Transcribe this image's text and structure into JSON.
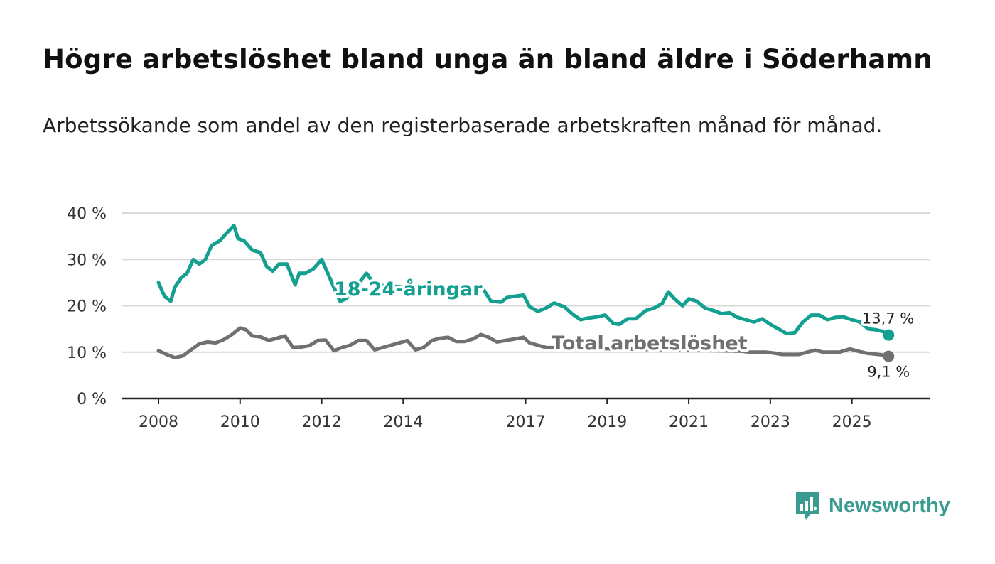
{
  "header": {
    "title": "Högre arbetslöshet bland unga än bland äldre i Söderhamn",
    "subtitle": "Arbetssökande som andel av den registerbaserade arbetskraften månad för månad."
  },
  "brand": {
    "name": "Newsworthy",
    "logo_icon": "newsworthy-logo-icon",
    "color": "#3a9c91"
  },
  "colors": {
    "youth": "#14a090",
    "total": "#707070",
    "grid": "#d9d9d9",
    "axis": "#222222"
  },
  "chart_data": {
    "type": "line",
    "title": "Högre arbetslöshet bland unga än bland äldre i Söderhamn",
    "subtitle": "Arbetssökande som andel av den registerbaserade arbetskraften månad för månad.",
    "ylim": [
      0,
      40
    ],
    "yticks": [
      0,
      10,
      20,
      30,
      40
    ],
    "ytick_labels": [
      "0 %",
      "10 %",
      "20 %",
      "30 %",
      "40 %"
    ],
    "xlim": [
      2008.0,
      2026.0
    ],
    "xticks": [
      2008,
      2010,
      2012,
      2014,
      2017,
      2019,
      2021,
      2023,
      2025
    ],
    "xtick_labels": [
      "2008",
      "2010",
      "2012",
      "2014",
      "2017",
      "2019",
      "2021",
      "2023",
      "2025"
    ],
    "grid": true,
    "series": [
      {
        "name": "18-24-åringar",
        "label": "18-24-åringar",
        "color": "#14a090",
        "end_label": "13,7 %",
        "points": [
          [
            2008.0,
            25.0
          ],
          [
            2008.15,
            22.0
          ],
          [
            2008.3,
            21.0
          ],
          [
            2008.4,
            24.0
          ],
          [
            2008.55,
            26.0
          ],
          [
            2008.7,
            27.0
          ],
          [
            2008.85,
            30.0
          ],
          [
            2009.0,
            29.0
          ],
          [
            2009.15,
            30.0
          ],
          [
            2009.3,
            33.0
          ],
          [
            2009.5,
            34.0
          ],
          [
            2009.65,
            35.5
          ],
          [
            2009.85,
            37.3
          ],
          [
            2009.95,
            34.5
          ],
          [
            2010.1,
            34.0
          ],
          [
            2010.3,
            32.0
          ],
          [
            2010.5,
            31.5
          ],
          [
            2010.65,
            28.5
          ],
          [
            2010.8,
            27.5
          ],
          [
            2010.95,
            29.0
          ],
          [
            2011.15,
            29.0
          ],
          [
            2011.35,
            24.5
          ],
          [
            2011.45,
            27.0
          ],
          [
            2011.6,
            27.0
          ],
          [
            2011.8,
            28.0
          ],
          [
            2012.0,
            30.0
          ],
          [
            2012.15,
            27.0
          ],
          [
            2012.3,
            24.0
          ],
          [
            2012.45,
            21.0
          ],
          [
            2012.6,
            21.5
          ],
          [
            2013.1,
            27.0
          ],
          [
            2013.3,
            24.5
          ],
          [
            2015.5,
            23.0
          ],
          [
            2015.7,
            24.0
          ],
          [
            2015.95,
            23.8
          ],
          [
            2016.15,
            21.0
          ],
          [
            2016.4,
            20.8
          ],
          [
            2016.55,
            21.8
          ],
          [
            2016.7,
            22.0
          ],
          [
            2016.95,
            22.3
          ],
          [
            2017.1,
            19.8
          ],
          [
            2017.3,
            18.8
          ],
          [
            2017.5,
            19.5
          ],
          [
            2017.7,
            20.6
          ],
          [
            2017.95,
            19.8
          ],
          [
            2018.15,
            18.2
          ],
          [
            2018.35,
            17.0
          ],
          [
            2018.5,
            17.3
          ],
          [
            2018.75,
            17.6
          ],
          [
            2018.95,
            18.0
          ],
          [
            2019.15,
            16.2
          ],
          [
            2019.3,
            16.0
          ],
          [
            2019.5,
            17.2
          ],
          [
            2019.7,
            17.2
          ],
          [
            2019.95,
            19.0
          ],
          [
            2020.15,
            19.5
          ],
          [
            2020.35,
            20.5
          ],
          [
            2020.5,
            23.0
          ],
          [
            2020.65,
            21.5
          ],
          [
            2020.85,
            20.0
          ],
          [
            2021.0,
            21.5
          ],
          [
            2021.2,
            21.0
          ],
          [
            2021.4,
            19.5
          ],
          [
            2021.6,
            19.0
          ],
          [
            2021.8,
            18.3
          ],
          [
            2022.0,
            18.5
          ],
          [
            2022.2,
            17.5
          ],
          [
            2022.4,
            17.0
          ],
          [
            2022.6,
            16.5
          ],
          [
            2022.8,
            17.2
          ],
          [
            2023.0,
            16.0
          ],
          [
            2023.2,
            15.0
          ],
          [
            2023.4,
            14.0
          ],
          [
            2023.6,
            14.2
          ],
          [
            2023.8,
            16.5
          ],
          [
            2024.0,
            18.0
          ],
          [
            2024.2,
            18.0
          ],
          [
            2024.4,
            17.0
          ],
          [
            2024.6,
            17.5
          ],
          [
            2024.8,
            17.6
          ],
          [
            2025.0,
            17.0
          ],
          [
            2025.2,
            16.5
          ],
          [
            2025.4,
            15.0
          ],
          [
            2025.6,
            14.8
          ],
          [
            2025.75,
            14.5
          ],
          [
            2025.9,
            13.7
          ]
        ]
      },
      {
        "name": "Total arbetslöshet",
        "label": "Total arbetslöshet",
        "color": "#707070",
        "end_label": "9,1 %",
        "points": [
          [
            2008.0,
            10.3
          ],
          [
            2008.2,
            9.5
          ],
          [
            2008.4,
            8.8
          ],
          [
            2008.6,
            9.2
          ],
          [
            2008.8,
            10.5
          ],
          [
            2009.0,
            11.8
          ],
          [
            2009.2,
            12.2
          ],
          [
            2009.4,
            12.0
          ],
          [
            2009.6,
            12.7
          ],
          [
            2009.8,
            13.8
          ],
          [
            2010.0,
            15.2
          ],
          [
            2010.15,
            14.8
          ],
          [
            2010.3,
            13.5
          ],
          [
            2010.5,
            13.3
          ],
          [
            2010.7,
            12.5
          ],
          [
            2010.9,
            13.0
          ],
          [
            2011.1,
            13.5
          ],
          [
            2011.3,
            11.0
          ],
          [
            2011.5,
            11.1
          ],
          [
            2011.7,
            11.4
          ],
          [
            2011.9,
            12.5
          ],
          [
            2012.1,
            12.6
          ],
          [
            2012.3,
            10.3
          ],
          [
            2012.5,
            11.0
          ],
          [
            2012.7,
            11.5
          ],
          [
            2012.9,
            12.5
          ],
          [
            2013.1,
            12.5
          ],
          [
            2013.3,
            10.5
          ],
          [
            2013.5,
            11.0
          ],
          [
            2013.7,
            11.5
          ],
          [
            2013.9,
            12.0
          ],
          [
            2014.1,
            12.5
          ],
          [
            2014.3,
            10.5
          ],
          [
            2014.5,
            11.0
          ],
          [
            2014.7,
            12.5
          ],
          [
            2014.9,
            13.0
          ],
          [
            2015.1,
            13.2
          ],
          [
            2015.3,
            12.3
          ],
          [
            2015.5,
            12.3
          ],
          [
            2015.7,
            12.8
          ],
          [
            2015.9,
            13.8
          ],
          [
            2016.1,
            13.2
          ],
          [
            2016.3,
            12.2
          ],
          [
            2016.5,
            12.5
          ],
          [
            2016.7,
            12.8
          ],
          [
            2016.95,
            13.2
          ],
          [
            2017.1,
            12.0
          ],
          [
            2017.3,
            11.5
          ],
          [
            2017.5,
            11.0
          ],
          [
            2022.3,
            10.2
          ],
          [
            2022.5,
            10.0
          ],
          [
            2022.7,
            10.0
          ],
          [
            2022.9,
            10.0
          ],
          [
            2023.1,
            9.8
          ],
          [
            2023.3,
            9.5
          ],
          [
            2023.5,
            9.5
          ],
          [
            2023.7,
            9.5
          ],
          [
            2023.9,
            10.0
          ],
          [
            2024.1,
            10.4
          ],
          [
            2024.3,
            10.0
          ],
          [
            2024.5,
            10.0
          ],
          [
            2024.7,
            10.0
          ],
          [
            2024.95,
            10.7
          ],
          [
            2025.15,
            10.2
          ],
          [
            2025.35,
            9.8
          ],
          [
            2025.55,
            9.6
          ],
          [
            2025.75,
            9.4
          ],
          [
            2025.9,
            9.1
          ]
        ]
      }
    ]
  }
}
